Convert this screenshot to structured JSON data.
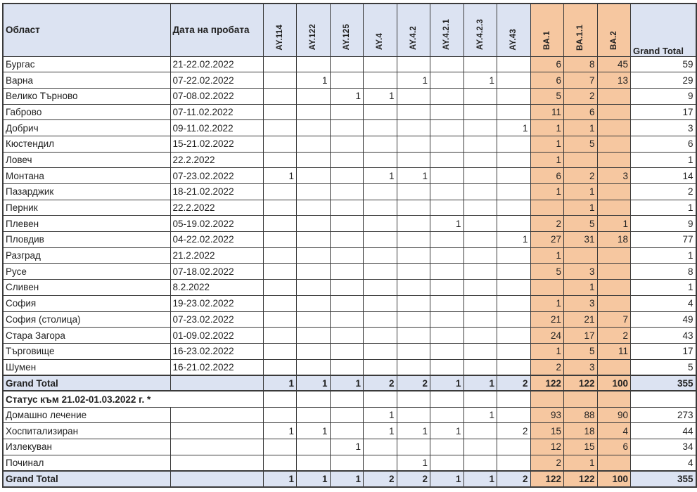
{
  "table": {
    "headers": {
      "region": "Област",
      "date": "Дата на пробата",
      "grand_total": "Grand Total"
    },
    "variant_columns": [
      {
        "label": "AY.114",
        "group": "ay"
      },
      {
        "label": "AY.122",
        "group": "ay"
      },
      {
        "label": "AY.125",
        "group": "ay"
      },
      {
        "label": "AY.4",
        "group": "ay"
      },
      {
        "label": "AY.4.2",
        "group": "ay"
      },
      {
        "label": "AY.4.2.1",
        "group": "ay"
      },
      {
        "label": "AY.4.2.3",
        "group": "ay"
      },
      {
        "label": "AY.43",
        "group": "ay"
      },
      {
        "label": "BA.1",
        "group": "ba"
      },
      {
        "label": "BA.1.1",
        "group": "ba"
      },
      {
        "label": "BA.2",
        "group": "ba"
      }
    ],
    "region_rows": [
      {
        "region": "Бургас",
        "date": "21-22.02.2022",
        "values": [
          "",
          "",
          "",
          "",
          "",
          "",
          "",
          "",
          "6",
          "8",
          "45"
        ],
        "total": "59"
      },
      {
        "region": "Варна",
        "date": "07-22.02.2022",
        "values": [
          "",
          "1",
          "",
          "",
          "1",
          "",
          "1",
          "",
          "6",
          "7",
          "13"
        ],
        "total": "29"
      },
      {
        "region": "Велико Търново",
        "date": "07-08.02.2022",
        "values": [
          "",
          "",
          "1",
          "1",
          "",
          "",
          "",
          "",
          "5",
          "2",
          ""
        ],
        "total": "9"
      },
      {
        "region": "Габрово",
        "date": "07-11.02.2022",
        "values": [
          "",
          "",
          "",
          "",
          "",
          "",
          "",
          "",
          "11",
          "6",
          ""
        ],
        "total": "17"
      },
      {
        "region": "Добрич",
        "date": "09-11.02.2022",
        "values": [
          "",
          "",
          "",
          "",
          "",
          "",
          "",
          "1",
          "1",
          "1",
          ""
        ],
        "total": "3"
      },
      {
        "region": "Кюстендил",
        "date": "15-21.02.2022",
        "values": [
          "",
          "",
          "",
          "",
          "",
          "",
          "",
          "",
          "1",
          "5",
          ""
        ],
        "total": "6"
      },
      {
        "region": "Ловеч",
        "date": "22.2.2022",
        "values": [
          "",
          "",
          "",
          "",
          "",
          "",
          "",
          "",
          "1",
          "",
          ""
        ],
        "total": "1"
      },
      {
        "region": "Монтана",
        "date": "07-23.02.2022",
        "values": [
          "1",
          "",
          "",
          "1",
          "1",
          "",
          "",
          "",
          "6",
          "2",
          "3"
        ],
        "total": "14"
      },
      {
        "region": "Пазарджик",
        "date": "18-21.02.2022",
        "values": [
          "",
          "",
          "",
          "",
          "",
          "",
          "",
          "",
          "1",
          "1",
          ""
        ],
        "total": "2"
      },
      {
        "region": "Перник",
        "date": "22.2.2022",
        "values": [
          "",
          "",
          "",
          "",
          "",
          "",
          "",
          "",
          "",
          "1",
          ""
        ],
        "total": "1"
      },
      {
        "region": "Плевен",
        "date": "05-19.02.2022",
        "values": [
          "",
          "",
          "",
          "",
          "",
          "1",
          "",
          "",
          "2",
          "5",
          "1"
        ],
        "total": "9"
      },
      {
        "region": "Пловдив",
        "date": "04-22.02.2022",
        "values": [
          "",
          "",
          "",
          "",
          "",
          "",
          "",
          "1",
          "27",
          "31",
          "18"
        ],
        "total": "77"
      },
      {
        "region": "Разград",
        "date": "21.2.2022",
        "values": [
          "",
          "",
          "",
          "",
          "",
          "",
          "",
          "",
          "1",
          "",
          ""
        ],
        "total": "1"
      },
      {
        "region": "Русе",
        "date": "07-18.02.2022",
        "values": [
          "",
          "",
          "",
          "",
          "",
          "",
          "",
          "",
          "5",
          "3",
          ""
        ],
        "total": "8"
      },
      {
        "region": "Сливен",
        "date": "8.2.2022",
        "values": [
          "",
          "",
          "",
          "",
          "",
          "",
          "",
          "",
          "",
          "1",
          ""
        ],
        "total": "1"
      },
      {
        "region": "София",
        "date": "19-23.02.2022",
        "values": [
          "",
          "",
          "",
          "",
          "",
          "",
          "",
          "",
          "1",
          "3",
          ""
        ],
        "total": "4"
      },
      {
        "region": "София (столица)",
        "date": "07-23.02.2022",
        "values": [
          "",
          "",
          "",
          "",
          "",
          "",
          "",
          "",
          "21",
          "21",
          "7"
        ],
        "total": "49"
      },
      {
        "region": "Стара Загора",
        "date": "01-09.02.2022",
        "values": [
          "",
          "",
          "",
          "",
          "",
          "",
          "",
          "",
          "24",
          "17",
          "2"
        ],
        "total": "43"
      },
      {
        "region": "Търговище",
        "date": "16-23.02.2022",
        "values": [
          "",
          "",
          "",
          "",
          "",
          "",
          "",
          "",
          "1",
          "5",
          "11"
        ],
        "total": "17"
      },
      {
        "region": "Шумен",
        "date": "16-21.02.2022",
        "values": [
          "",
          "",
          "",
          "",
          "",
          "",
          "",
          "",
          "2",
          "3",
          ""
        ],
        "total": "5"
      }
    ],
    "grand_total_row": {
      "label": "Grand Total",
      "values": [
        "1",
        "1",
        "1",
        "2",
        "2",
        "1",
        "1",
        "2",
        "122",
        "122",
        "100"
      ],
      "total": "355"
    },
    "status_section": {
      "label": "Статус към 21.02-01.03.2022 г. *",
      "rows": [
        {
          "label": "Домашно лечение",
          "values": [
            "",
            "",
            "",
            "1",
            "",
            "",
            "1",
            "",
            "93",
            "88",
            "90"
          ],
          "total": "273"
        },
        {
          "label": "Хоспитализиран",
          "values": [
            "1",
            "1",
            "",
            "1",
            "1",
            "1",
            "",
            "2",
            "15",
            "18",
            "4"
          ],
          "total": "44"
        },
        {
          "label": "Излекуван",
          "values": [
            "",
            "",
            "1",
            "",
            "",
            "",
            "",
            "",
            "12",
            "15",
            "6"
          ],
          "total": "34"
        },
        {
          "label": "Починал",
          "values": [
            "",
            "",
            "",
            "",
            "1",
            "",
            "",
            "",
            "2",
            "1",
            ""
          ],
          "total": "4"
        }
      ],
      "grand_total_row": {
        "label": "Grand Total",
        "values": [
          "1",
          "1",
          "1",
          "2",
          "2",
          "1",
          "1",
          "2",
          "122",
          "122",
          "100"
        ],
        "total": "355"
      }
    },
    "colors": {
      "header_fill": "#dce3f2",
      "ba_fill": "#f6c7a0",
      "total_fill": "#dce3f2",
      "border": "#3a3a3a",
      "text": "#222222"
    }
  }
}
